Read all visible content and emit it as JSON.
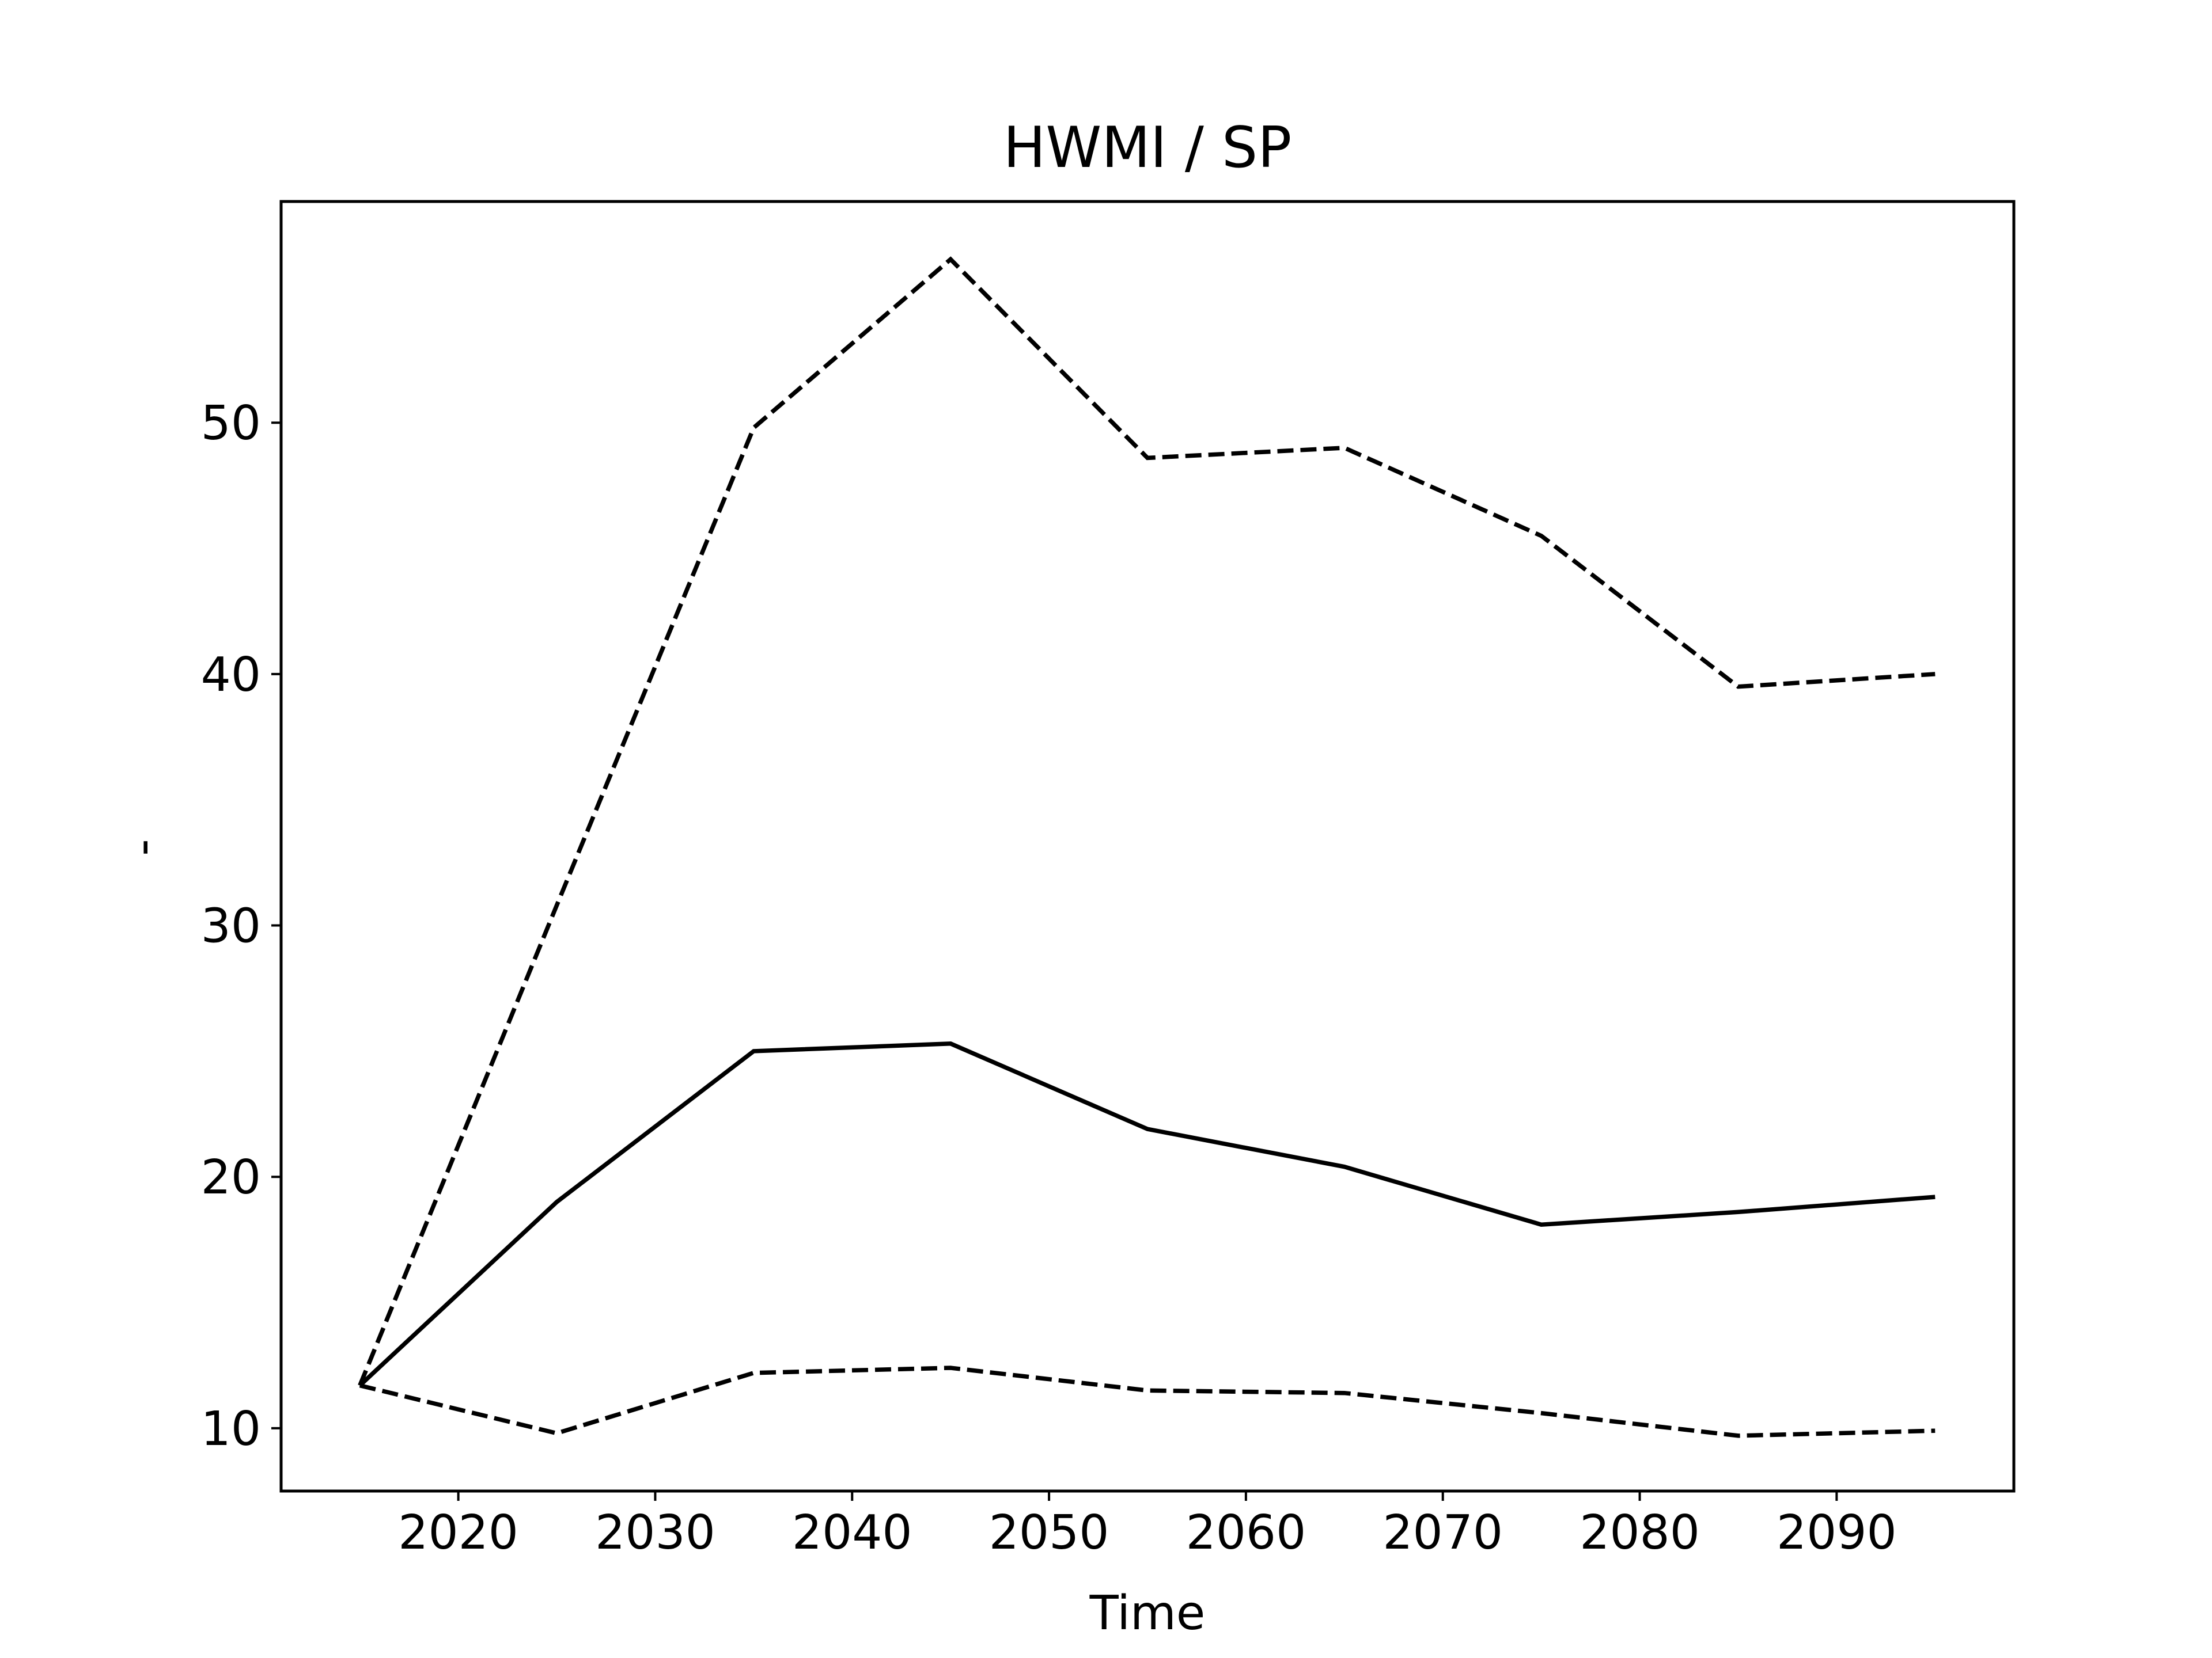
{
  "chart_data": {
    "type": "line",
    "title": "HWMI / SP",
    "xlabel": "Time",
    "ylabel": "-",
    "x": [
      2015,
      2025,
      2035,
      2045,
      2055,
      2065,
      2075,
      2085,
      2095
    ],
    "series": [
      {
        "style": "dashed",
        "color": "#000000",
        "values": [
          11.7,
          30.8,
          49.8,
          56.5,
          48.6,
          49.0,
          45.5,
          39.5,
          40.0
        ]
      },
      {
        "style": "solid",
        "color": "#000000",
        "values": [
          11.7,
          19.0,
          25.0,
          25.3,
          21.9,
          20.4,
          18.1,
          18.6,
          19.2
        ]
      },
      {
        "style": "dashed",
        "color": "#000000",
        "values": [
          11.7,
          9.8,
          12.2,
          12.4,
          11.5,
          11.4,
          10.6,
          9.7,
          9.9
        ]
      }
    ],
    "xlim": [
      2011,
      2099
    ],
    "ylim": [
      7.5,
      58.8
    ],
    "xticks": [
      2020,
      2030,
      2040,
      2050,
      2060,
      2070,
      2080,
      2090
    ],
    "yticks": [
      10,
      20,
      30,
      40,
      50
    ],
    "grid": false,
    "legend": "none"
  }
}
